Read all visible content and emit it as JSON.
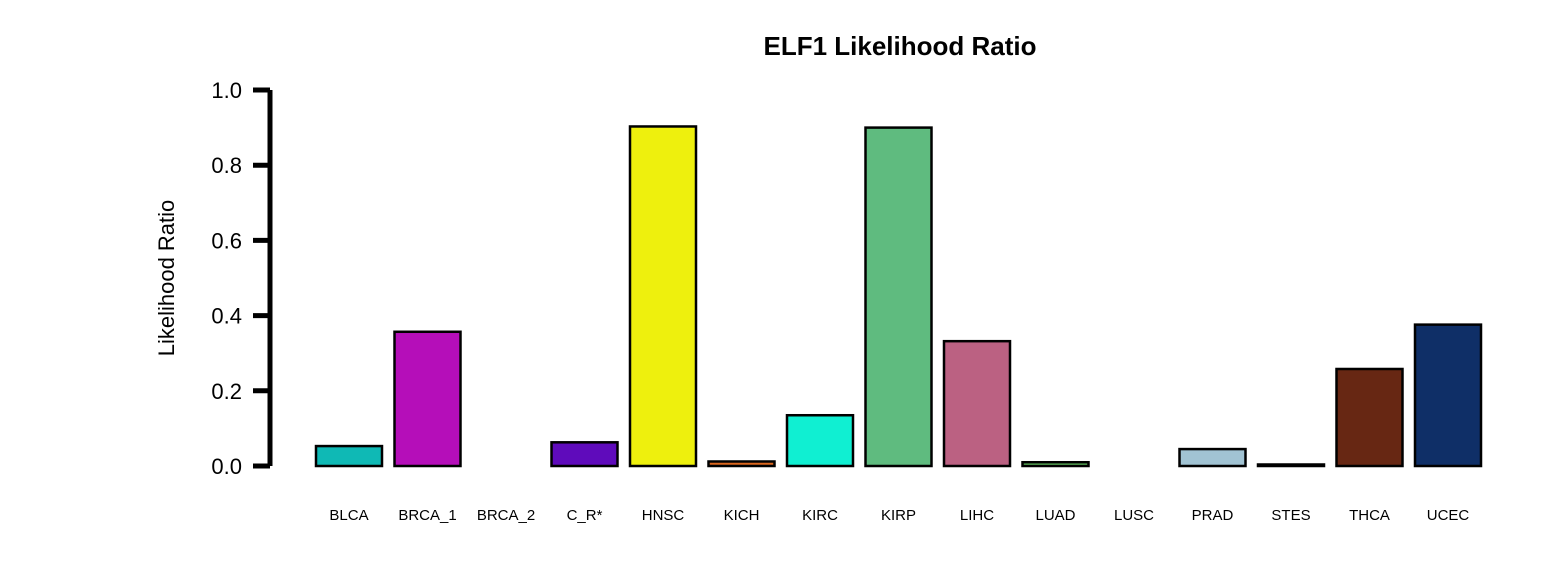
{
  "chart_data": {
    "type": "bar",
    "title": "ELF1 Likelihood Ratio",
    "xlabel": "",
    "ylabel": "Likelihood Ratio",
    "ylim": [
      0,
      1
    ],
    "yticks": [
      "0.0",
      "0.2",
      "0.4",
      "0.6",
      "0.8",
      "1.0"
    ],
    "grid": false,
    "categories": [
      "BLCA",
      "BRCA_1",
      "BRCA_2",
      "C_R*",
      "HNSC",
      "KICH",
      "KIRC",
      "KIRP",
      "LIHC",
      "LUAD",
      "LUSC",
      "PRAD",
      "STES",
      "THCA",
      "UCEC"
    ],
    "values": [
      0.053,
      0.357,
      0.0,
      0.063,
      0.903,
      0.012,
      0.135,
      0.9,
      0.332,
      0.01,
      0.0,
      0.045,
      0.004,
      0.258,
      0.376
    ],
    "colors": [
      "#0fb9b5",
      "#b50eb9",
      "#2a2a2a",
      "#5f0bbb",
      "#eef00d",
      "#d9661e",
      "#10efd2",
      "#5fbb7f",
      "#bb6182",
      "#61bb5f",
      "#2a2a2a",
      "#a1c3d3",
      "#2a2a2a",
      "#672713",
      "#0f2f67"
    ]
  }
}
